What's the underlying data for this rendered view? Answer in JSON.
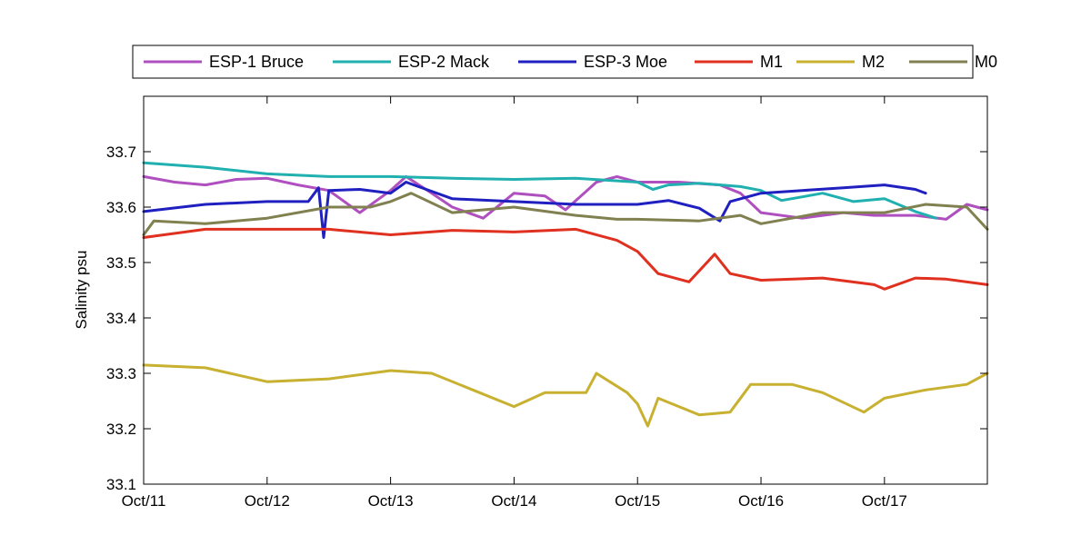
{
  "chart_data": {
    "type": "line",
    "title": "",
    "xlabel": "",
    "ylabel": "Salinity psu",
    "x_tick_labels": [
      "Oct/11",
      "Oct/12",
      "Oct/13",
      "Oct/14",
      "Oct/15",
      "Oct/16",
      "Oct/17"
    ],
    "x_ticks": [
      "2012-10-11",
      "2012-10-12",
      "2012-10-13",
      "2012-10-14",
      "2012-10-15",
      "2012-10-16",
      "2012-10-17"
    ],
    "xlim": [
      "2012-10-11",
      "2012-10-17 20:00"
    ],
    "y_ticks": [
      33.1,
      33.2,
      33.3,
      33.4,
      33.5,
      33.6,
      33.7
    ],
    "y_tick_labels": [
      "33.1",
      "33.2",
      "33.3",
      "33.4",
      "33.5",
      "33.6",
      "33.7"
    ],
    "ylim": [
      33.1,
      33.8
    ],
    "grid": false,
    "legend": {
      "placement": "top-outside",
      "orientation": "horizontal"
    },
    "series": [
      {
        "name": "ESP-1 Bruce",
        "color": "#b050c0",
        "points": [
          [
            "2012-10-11 00:00",
            33.655
          ],
          [
            "2012-10-11 06:00",
            33.645
          ],
          [
            "2012-10-11 12:00",
            33.64
          ],
          [
            "2012-10-11 18:00",
            33.65
          ],
          [
            "2012-10-12 00:00",
            33.652
          ],
          [
            "2012-10-12 06:00",
            33.64
          ],
          [
            "2012-10-12 12:00",
            33.63
          ],
          [
            "2012-10-12 18:00",
            33.59
          ],
          [
            "2012-10-13 00:00",
            33.63
          ],
          [
            "2012-10-13 03:00",
            33.655
          ],
          [
            "2012-10-13 08:00",
            33.625
          ],
          [
            "2012-10-13 12:00",
            33.6
          ],
          [
            "2012-10-13 18:00",
            33.58
          ],
          [
            "2012-10-14 00:00",
            33.625
          ],
          [
            "2012-10-14 06:00",
            33.62
          ],
          [
            "2012-10-14 10:00",
            33.595
          ],
          [
            "2012-10-14 16:00",
            33.645
          ],
          [
            "2012-10-14 20:00",
            33.655
          ],
          [
            "2012-10-15 00:00",
            33.645
          ],
          [
            "2012-10-15 08:00",
            33.645
          ],
          [
            "2012-10-15 16:00",
            33.64
          ],
          [
            "2012-10-15 20:00",
            33.625
          ],
          [
            "2012-10-16 00:00",
            33.59
          ],
          [
            "2012-10-16 08:00",
            33.58
          ],
          [
            "2012-10-16 16:00",
            33.59
          ],
          [
            "2012-10-16 22:00",
            33.585
          ],
          [
            "2012-10-17 06:00",
            33.585
          ],
          [
            "2012-10-17 12:00",
            33.578
          ],
          [
            "2012-10-17 16:00",
            33.605
          ],
          [
            "2012-10-17 20:00",
            33.595
          ]
        ]
      },
      {
        "name": "ESP-2 Mack",
        "color": "#20b0b0",
        "points": [
          [
            "2012-10-11 00:00",
            33.68
          ],
          [
            "2012-10-11 12:00",
            33.672
          ],
          [
            "2012-10-12 00:00",
            33.66
          ],
          [
            "2012-10-12 12:00",
            33.655
          ],
          [
            "2012-10-13 00:00",
            33.655
          ],
          [
            "2012-10-13 12:00",
            33.652
          ],
          [
            "2012-10-14 00:00",
            33.65
          ],
          [
            "2012-10-14 12:00",
            33.652
          ],
          [
            "2012-10-15 00:00",
            33.645
          ],
          [
            "2012-10-15 03:00",
            33.632
          ],
          [
            "2012-10-15 06:00",
            33.64
          ],
          [
            "2012-10-15 12:00",
            33.643
          ],
          [
            "2012-10-15 20:00",
            33.637
          ],
          [
            "2012-10-16 00:00",
            33.63
          ],
          [
            "2012-10-16 04:00",
            33.612
          ],
          [
            "2012-10-16 12:00",
            33.625
          ],
          [
            "2012-10-16 18:00",
            33.61
          ],
          [
            "2012-10-17 00:00",
            33.615
          ],
          [
            "2012-10-17 06:00",
            33.592
          ],
          [
            "2012-10-17 10:00",
            33.58
          ]
        ]
      },
      {
        "name": "ESP-3 Moe",
        "color": "#2020c0",
        "points": [
          [
            "2012-10-11 00:00",
            33.592
          ],
          [
            "2012-10-11 12:00",
            33.605
          ],
          [
            "2012-10-12 00:00",
            33.61
          ],
          [
            "2012-10-12 08:00",
            33.61
          ],
          [
            "2012-10-12 10:00",
            33.635
          ],
          [
            "2012-10-12 11:00",
            33.545
          ],
          [
            "2012-10-12 12:00",
            33.63
          ],
          [
            "2012-10-12 18:00",
            33.632
          ],
          [
            "2012-10-13 00:00",
            33.625
          ],
          [
            "2012-10-13 03:00",
            33.645
          ],
          [
            "2012-10-13 12:00",
            33.615
          ],
          [
            "2012-10-14 00:00",
            33.61
          ],
          [
            "2012-10-14 12:00",
            33.605
          ],
          [
            "2012-10-15 00:00",
            33.605
          ],
          [
            "2012-10-15 06:00",
            33.612
          ],
          [
            "2012-10-15 12:00",
            33.598
          ],
          [
            "2012-10-15 16:00",
            33.575
          ],
          [
            "2012-10-15 18:00",
            33.61
          ],
          [
            "2012-10-16 00:00",
            33.625
          ],
          [
            "2012-10-16 08:00",
            33.63
          ],
          [
            "2012-10-16 16:00",
            33.635
          ],
          [
            "2012-10-17 00:00",
            33.64
          ],
          [
            "2012-10-17 06:00",
            33.632
          ],
          [
            "2012-10-17 08:00",
            33.625
          ]
        ]
      },
      {
        "name": "M1",
        "color": "#e03020",
        "points": [
          [
            "2012-10-11 00:00",
            33.545
          ],
          [
            "2012-10-11 12:00",
            33.56
          ],
          [
            "2012-10-12 00:00",
            33.56
          ],
          [
            "2012-10-12 12:00",
            33.56
          ],
          [
            "2012-10-13 00:00",
            33.55
          ],
          [
            "2012-10-13 12:00",
            33.558
          ],
          [
            "2012-10-14 00:00",
            33.555
          ],
          [
            "2012-10-14 12:00",
            33.56
          ],
          [
            "2012-10-14 20:00",
            33.54
          ],
          [
            "2012-10-15 00:00",
            33.52
          ],
          [
            "2012-10-15 04:00",
            33.48
          ],
          [
            "2012-10-15 10:00",
            33.465
          ],
          [
            "2012-10-15 15:00",
            33.515
          ],
          [
            "2012-10-15 18:00",
            33.48
          ],
          [
            "2012-10-16 00:00",
            33.468
          ],
          [
            "2012-10-16 12:00",
            33.472
          ],
          [
            "2012-10-16 22:00",
            33.46
          ],
          [
            "2012-10-17 00:00",
            33.452
          ],
          [
            "2012-10-17 06:00",
            33.472
          ],
          [
            "2012-10-17 12:00",
            33.47
          ],
          [
            "2012-10-17 20:00",
            33.46
          ]
        ]
      },
      {
        "name": "M2",
        "color": "#c8b030",
        "points": [
          [
            "2012-10-11 00:00",
            33.315
          ],
          [
            "2012-10-11 12:00",
            33.31
          ],
          [
            "2012-10-12 00:00",
            33.285
          ],
          [
            "2012-10-12 12:00",
            33.29
          ],
          [
            "2012-10-13 00:00",
            33.305
          ],
          [
            "2012-10-13 08:00",
            33.3
          ],
          [
            "2012-10-13 16:00",
            33.27
          ],
          [
            "2012-10-14 00:00",
            33.24
          ],
          [
            "2012-10-14 06:00",
            33.265
          ],
          [
            "2012-10-14 14:00",
            33.265
          ],
          [
            "2012-10-14 16:00",
            33.3
          ],
          [
            "2012-10-14 22:00",
            33.265
          ],
          [
            "2012-10-15 00:00",
            33.245
          ],
          [
            "2012-10-15 02:00",
            33.205
          ],
          [
            "2012-10-15 04:00",
            33.255
          ],
          [
            "2012-10-15 12:00",
            33.225
          ],
          [
            "2012-10-15 18:00",
            33.23
          ],
          [
            "2012-10-15 22:00",
            33.28
          ],
          [
            "2012-10-16 06:00",
            33.28
          ],
          [
            "2012-10-16 12:00",
            33.265
          ],
          [
            "2012-10-16 20:00",
            33.23
          ],
          [
            "2012-10-17 00:00",
            33.255
          ],
          [
            "2012-10-17 08:00",
            33.27
          ],
          [
            "2012-10-17 16:00",
            33.28
          ],
          [
            "2012-10-17 20:00",
            33.3
          ]
        ]
      },
      {
        "name": "M0",
        "color": "#808050",
        "points": [
          [
            "2012-10-11 00:00",
            33.55
          ],
          [
            "2012-10-11 02:00",
            33.575
          ],
          [
            "2012-10-11 12:00",
            33.57
          ],
          [
            "2012-10-12 00:00",
            33.58
          ],
          [
            "2012-10-12 12:00",
            33.6
          ],
          [
            "2012-10-12 20:00",
            33.6
          ],
          [
            "2012-10-13 00:00",
            33.61
          ],
          [
            "2012-10-13 04:00",
            33.625
          ],
          [
            "2012-10-13 12:00",
            33.59
          ],
          [
            "2012-10-14 00:00",
            33.6
          ],
          [
            "2012-10-14 12:00",
            33.585
          ],
          [
            "2012-10-14 20:00",
            33.578
          ],
          [
            "2012-10-15 00:00",
            33.578
          ],
          [
            "2012-10-15 12:00",
            33.575
          ],
          [
            "2012-10-15 20:00",
            33.585
          ],
          [
            "2012-10-16 00:00",
            33.57
          ],
          [
            "2012-10-16 12:00",
            33.59
          ],
          [
            "2012-10-17 00:00",
            33.59
          ],
          [
            "2012-10-17 08:00",
            33.605
          ],
          [
            "2012-10-17 16:00",
            33.6
          ],
          [
            "2012-10-17 20:00",
            33.56
          ]
        ]
      }
    ]
  }
}
